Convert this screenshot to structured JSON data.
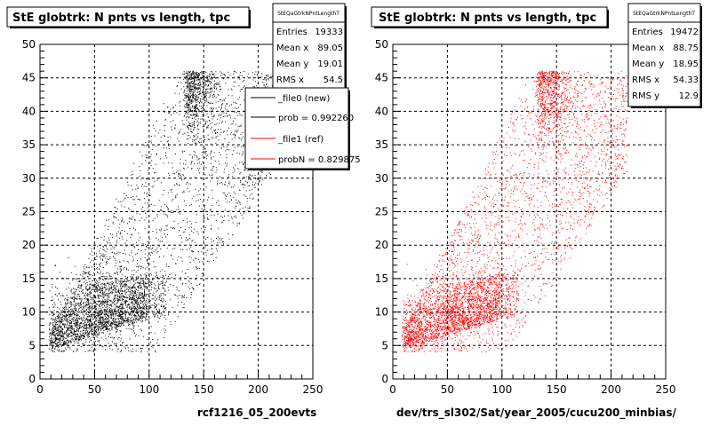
{
  "chart_data": [
    {
      "type": "scatter",
      "title": "StE globtrk: N pnts vs length, tpc",
      "xlabel": "rcf1216_05_200evts",
      "ylabel": "",
      "xlim": [
        0,
        250
      ],
      "ylim": [
        0,
        50
      ],
      "x_ticks": [
        "0",
        "50",
        "100",
        "150",
        "200",
        "250"
      ],
      "y_ticks": [
        "0",
        "5",
        "10",
        "15",
        "20",
        "25",
        "30",
        "35",
        "40",
        "45",
        "50"
      ],
      "grid": true,
      "marker_color": "#000000",
      "stats": {
        "name": "StEQaGtrkNPntLengthT",
        "rows": [
          {
            "label": "Entries",
            "value": "19333"
          },
          {
            "label": "Mean x",
            "value": "89.05"
          },
          {
            "label": "Mean y",
            "value": "19.01"
          },
          {
            "label": "RMS x",
            "value": "54.5"
          }
        ]
      },
      "legend": {
        "placement": "top-right",
        "entries": [
          {
            "label": "_file0 (new)",
            "color": "#000000"
          },
          {
            "label": "prob = 0.992260",
            "color": "#000000"
          },
          {
            "label": "_file1 (ref)",
            "color": "#ff0000"
          },
          {
            "label": "probN = 0.829875",
            "color": "#ff0000"
          }
        ]
      },
      "n_points": 19333
    },
    {
      "type": "scatter",
      "title": "StE globtrk: N pnts vs length, tpc",
      "xlabel": "dev/trs_sl302/Sat/year_2005/cucu200_minbias/",
      "ylabel": "",
      "xlim": [
        0,
        250
      ],
      "ylim": [
        0,
        50
      ],
      "x_ticks": [
        "0",
        "50",
        "100",
        "150",
        "200",
        "250"
      ],
      "y_ticks": [
        "0",
        "5",
        "10",
        "15",
        "20",
        "25",
        "30",
        "35",
        "40",
        "45",
        "50"
      ],
      "grid": true,
      "marker_color": "#ff0000",
      "stats": {
        "name": "StEQaGtrkNPntLengthT",
        "rows": [
          {
            "label": "Entries",
            "value": "19472"
          },
          {
            "label": "Mean x",
            "value": "88.75"
          },
          {
            "label": "Mean y",
            "value": "18.95"
          },
          {
            "label": "RMS x",
            "value": "54.33"
          },
          {
            "label": "RMS y",
            "value": "12.9"
          }
        ]
      },
      "n_points": 19472
    }
  ]
}
